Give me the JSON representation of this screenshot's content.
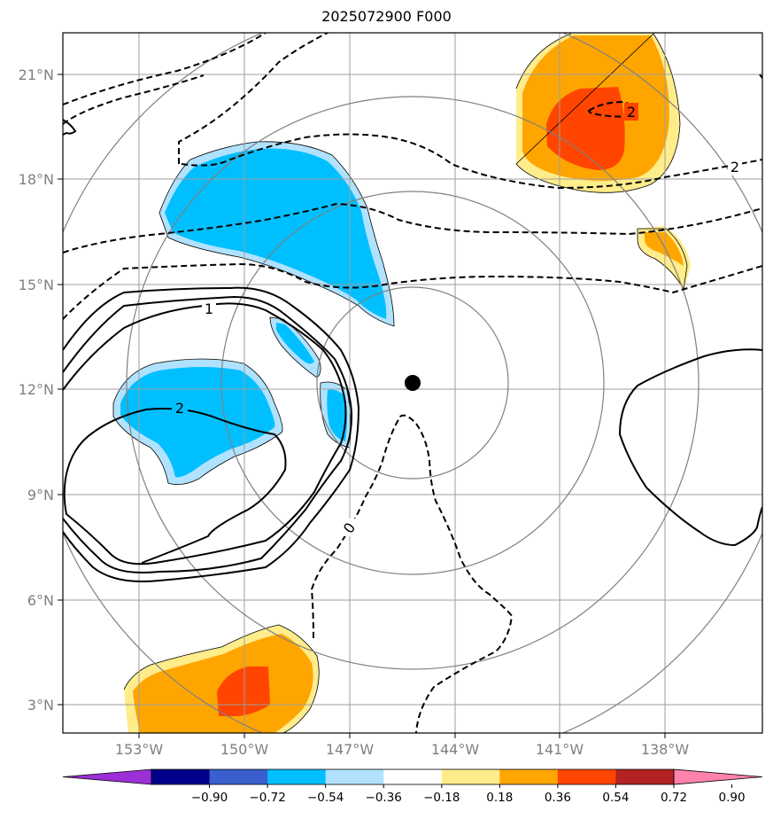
{
  "title": "2025072900 F000",
  "map": {
    "lon_ticks": [
      "153°W",
      "150°W",
      "147°W",
      "144°W",
      "141°W",
      "138°W"
    ],
    "lat_ticks": [
      "21°N",
      "18°N",
      "15°N",
      "12°N",
      "9°N",
      "6°N",
      "3°N"
    ],
    "center_marker": {
      "lon": "145.2°W",
      "lat": "12.2°N"
    }
  },
  "colorbar": {
    "levels": [
      "−0.90",
      "−0.72",
      "−0.54",
      "−0.36",
      "−0.18",
      "0.18",
      "0.36",
      "0.54",
      "0.72",
      "0.90"
    ],
    "colors": [
      "#9b30d6",
      "#00008b",
      "#3a5fcd",
      "#00bfff",
      "#b0e2ff",
      "#ffffff",
      "#ffec8b",
      "#ffa500",
      "#ff4500",
      "#b22222",
      "#ff82ab"
    ]
  },
  "contour_labels": [
    "1",
    "2",
    "0",
    "2",
    "2"
  ]
}
